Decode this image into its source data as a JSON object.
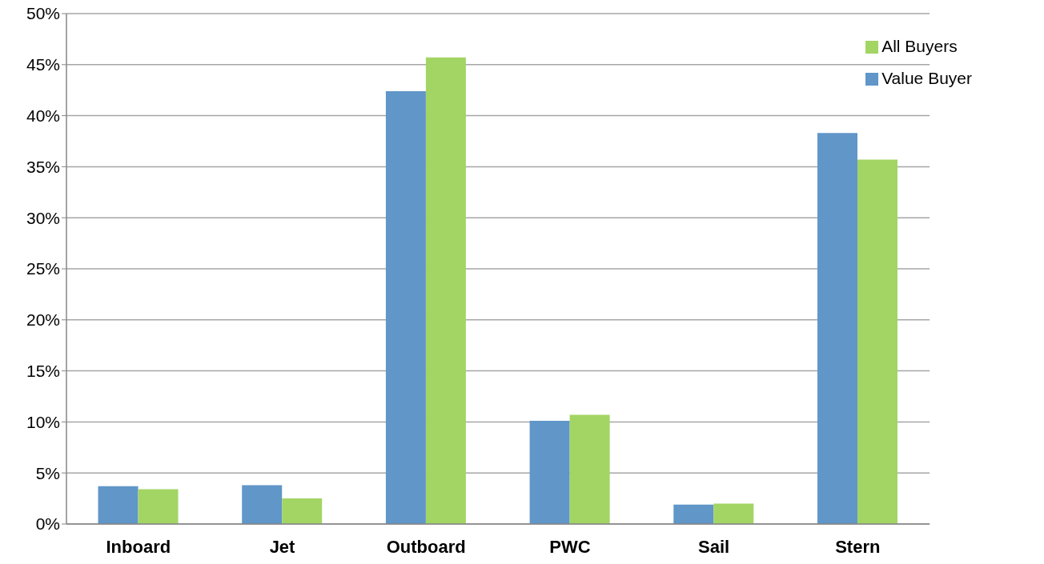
{
  "chart_data": {
    "type": "bar",
    "categories": [
      "Inboard",
      "Jet",
      "Outboard",
      "PWC",
      "Sail",
      "Stern"
    ],
    "series": [
      {
        "name": "Value Buyer",
        "color": "#6096c8",
        "values": [
          3.7,
          3.8,
          42.4,
          10.1,
          1.9,
          38.3
        ]
      },
      {
        "name": "All Buyers",
        "color": "#a2d564",
        "values": [
          3.4,
          2.5,
          45.7,
          10.7,
          2.0,
          35.7
        ]
      }
    ],
    "ylim": [
      0,
      50
    ],
    "yticks": [
      {
        "value": 0,
        "label": "0%"
      },
      {
        "value": 5,
        "label": "5%"
      },
      {
        "value": 10,
        "label": "10%"
      },
      {
        "value": 15,
        "label": "15%"
      },
      {
        "value": 20,
        "label": "20%"
      },
      {
        "value": 25,
        "label": "25%"
      },
      {
        "value": 30,
        "label": "30%"
      },
      {
        "value": 35,
        "label": "35%"
      },
      {
        "value": 40,
        "label": "40%"
      },
      {
        "value": 45,
        "label": "45%"
      },
      {
        "value": 50,
        "label": "50%"
      }
    ],
    "grid": "y",
    "legend": "top right"
  }
}
